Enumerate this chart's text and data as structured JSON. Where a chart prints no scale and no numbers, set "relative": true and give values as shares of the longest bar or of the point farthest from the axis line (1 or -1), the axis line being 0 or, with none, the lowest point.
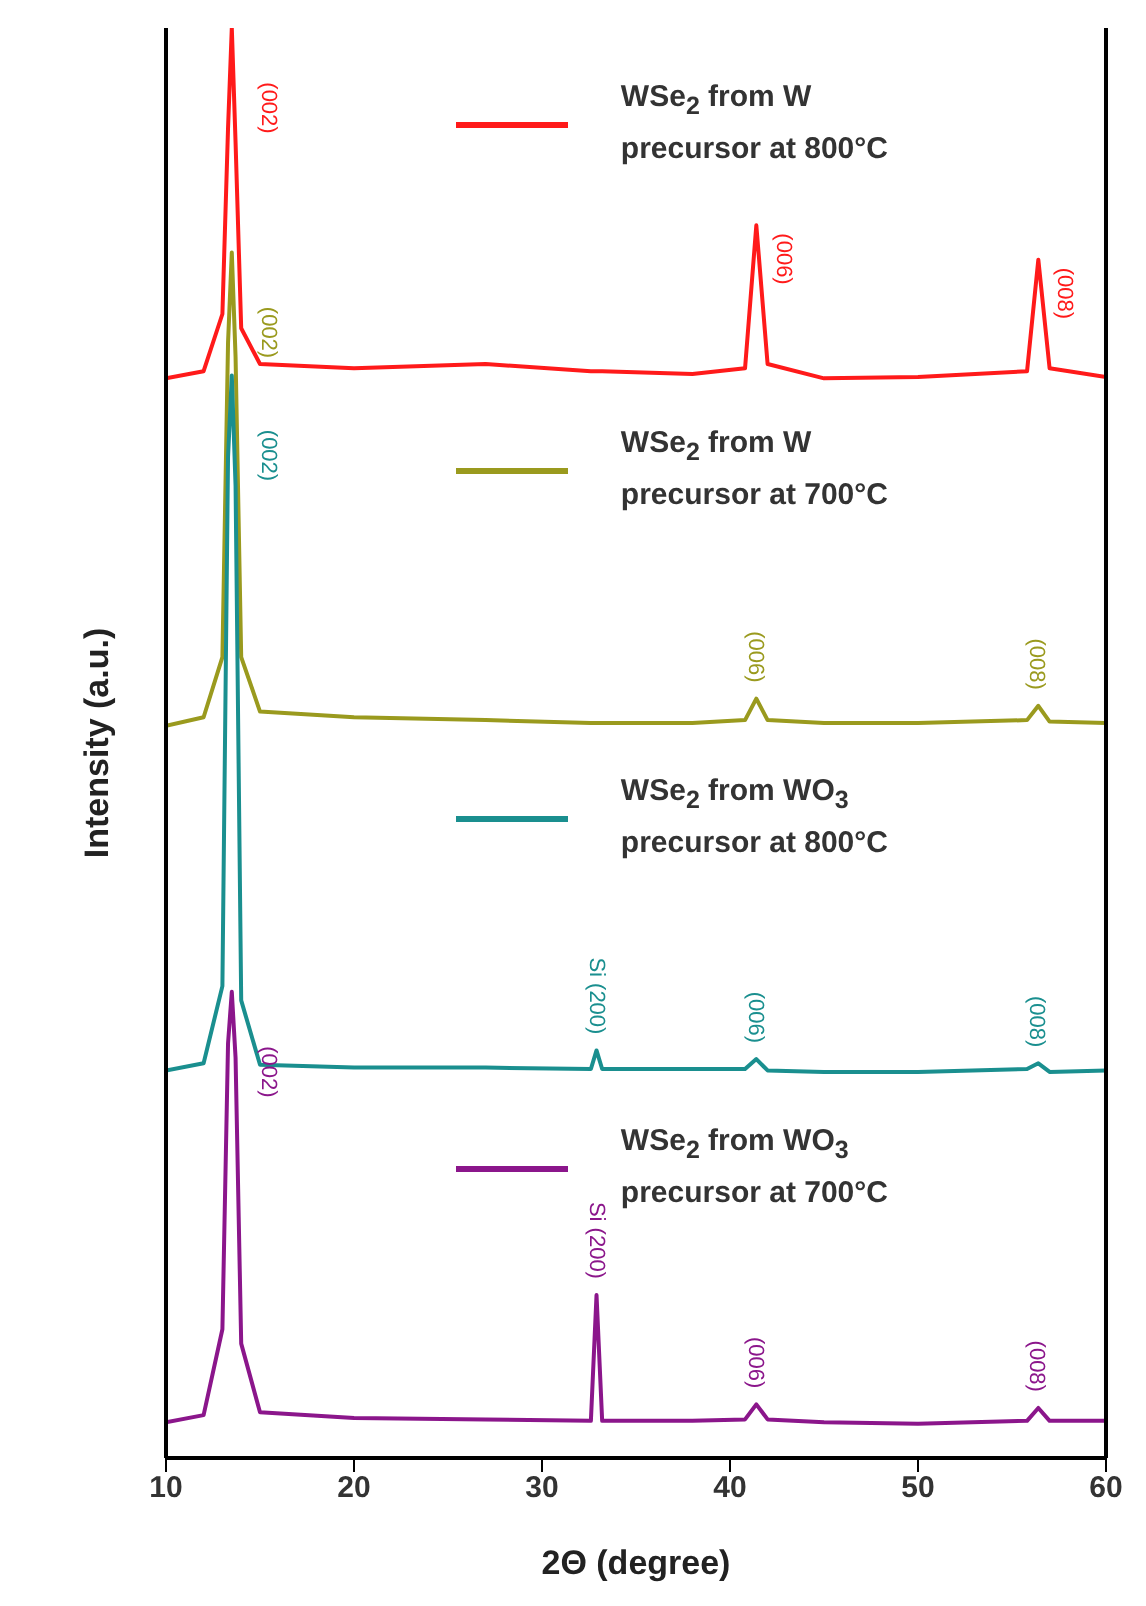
{
  "chart_data": {
    "type": "line",
    "relative": true,
    "xlabel": "2Θ (degree)",
    "ylabel": "Intensity (a.u.)",
    "xlim": [
      10,
      60
    ],
    "xticks": [
      10,
      20,
      30,
      40,
      50,
      60
    ],
    "tick_labels": "x",
    "legend": "right",
    "marker": "none",
    "line_style": "solid",
    "x": [
      10,
      12,
      13.0,
      13.3,
      13.5,
      13.7,
      14.0,
      15,
      20,
      27,
      32.6,
      32.9,
      33.2,
      38,
      40.8,
      41.4,
      42.0,
      45,
      50,
      55.8,
      56.4,
      57.0,
      60
    ],
    "series": [
      {
        "name": "WSe$_{2}$ from W precursor at 800°C",
        "color": "#ff1a1a",
        "values": [
          0.755,
          0.76,
          0.8,
          0.93,
          1.0,
          0.92,
          0.79,
          0.765,
          0.762,
          0.765,
          0.76,
          0.76,
          0.76,
          0.758,
          0.762,
          0.862,
          0.765,
          0.755,
          0.756,
          0.76,
          0.838,
          0.762,
          0.756
        ]
      },
      {
        "name": "WSe$_{2}$ from W precursor at 700°C",
        "color": "#9a9a1e",
        "values": [
          0.512,
          0.518,
          0.56,
          0.78,
          0.843,
          0.77,
          0.56,
          0.522,
          0.518,
          0.516,
          0.514,
          0.514,
          0.514,
          0.514,
          0.516,
          0.531,
          0.516,
          0.514,
          0.514,
          0.516,
          0.526,
          0.515,
          0.514
        ]
      },
      {
        "name": "WSe$_{2}$ from WO$_{3}$ precursor at 800°C",
        "color": "#1a8f8f",
        "values": [
          0.271,
          0.276,
          0.33,
          0.7,
          0.757,
          0.68,
          0.32,
          0.275,
          0.273,
          0.273,
          0.272,
          0.285,
          0.272,
          0.272,
          0.272,
          0.279,
          0.271,
          0.27,
          0.27,
          0.272,
          0.276,
          0.27,
          0.271
        ]
      },
      {
        "name": "WSe$_{2}$ from WO$_{3}$ precursor at 700°C",
        "color": "#8b168b",
        "values": [
          0.025,
          0.03,
          0.09,
          0.29,
          0.326,
          0.28,
          0.08,
          0.032,
          0.028,
          0.027,
          0.026,
          0.114,
          0.026,
          0.026,
          0.027,
          0.0375,
          0.027,
          0.025,
          0.024,
          0.026,
          0.035,
          0.026,
          0.026
        ]
      }
    ],
    "annotations": [
      {
        "text": "(002)",
        "x": 13.5,
        "y": 1.0
      },
      {
        "text": "(006)",
        "x": 41.4,
        "y": 0.862
      },
      {
        "text": "(008)",
        "x": 56.4,
        "y": 0.838
      },
      {
        "text": "(002)",
        "x": 13.5,
        "y": 0.843
      },
      {
        "text": "(006)",
        "x": 41.4,
        "y": 0.531
      },
      {
        "text": "(008)",
        "x": 56.4,
        "y": 0.526
      },
      {
        "text": "(002)",
        "x": 13.5,
        "y": 0.757
      },
      {
        "text": "Si (200)",
        "x": 32.9,
        "y": 0.285
      },
      {
        "text": "(006)",
        "x": 41.4,
        "y": 0.279
      },
      {
        "text": "(008)",
        "x": 56.4,
        "y": 0.276
      },
      {
        "text": "(002)",
        "x": 13.5,
        "y": 0.326
      },
      {
        "text": "Si (200)",
        "x": 32.9,
        "y": 0.114
      },
      {
        "text": "(006)",
        "x": 41.4,
        "y": 0.0375
      },
      {
        "text": "(008)",
        "x": 56.4,
        "y": 0.035
      }
    ]
  }
}
